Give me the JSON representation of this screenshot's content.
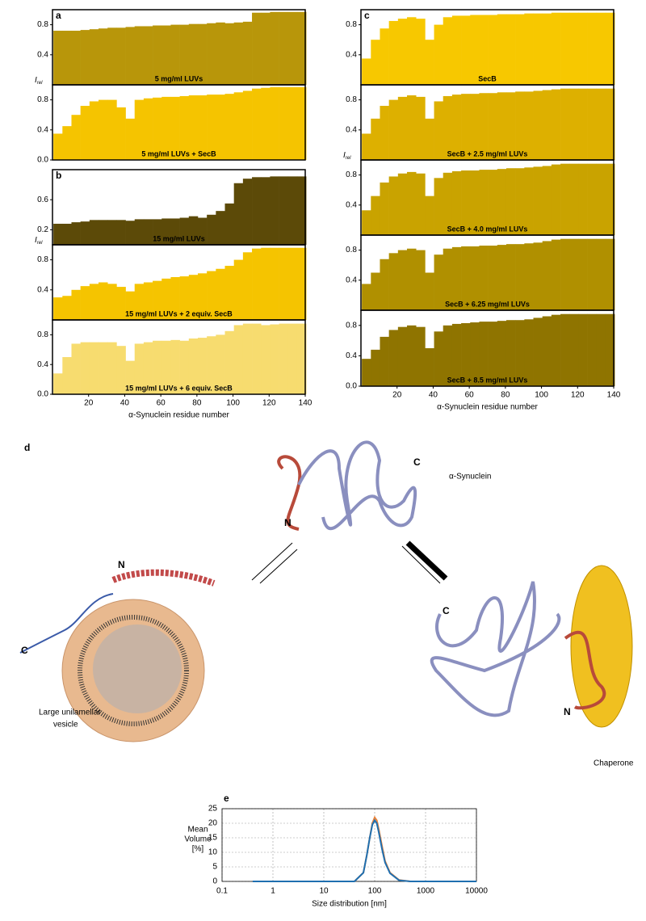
{
  "chart_data": [
    {
      "type": "bar",
      "panel_label": "a",
      "label": "5 mg/ml LUVs",
      "color": "#b8960a",
      "y_label": "I",
      "y_label_subscript": "rel",
      "x": [
        3,
        8,
        13,
        18,
        23,
        28,
        33,
        38,
        43,
        48,
        53,
        58,
        63,
        68,
        73,
        78,
        83,
        88,
        93,
        98,
        103,
        108,
        113,
        118,
        123,
        128,
        133,
        138
      ],
      "values": [
        0.72,
        0.72,
        0.72,
        0.73,
        0.74,
        0.75,
        0.76,
        0.76,
        0.77,
        0.78,
        0.78,
        0.79,
        0.79,
        0.8,
        0.8,
        0.81,
        0.81,
        0.82,
        0.83,
        0.82,
        0.83,
        0.84,
        0.96,
        0.96,
        0.97,
        0.97,
        0.97,
        0.97
      ],
      "xlim": [
        0,
        140
      ],
      "ylim": [
        0,
        1
      ],
      "yticks": [
        0.4,
        0.8
      ]
    },
    {
      "type": "bar",
      "label": "5 mg/ml LUVs + SecB",
      "color": "#f5c400",
      "x": [
        3,
        8,
        13,
        18,
        23,
        28,
        33,
        38,
        43,
        48,
        53,
        58,
        63,
        68,
        73,
        78,
        83,
        88,
        93,
        98,
        103,
        108,
        113,
        118,
        123,
        128,
        133,
        138
      ],
      "values": [
        0.35,
        0.45,
        0.6,
        0.72,
        0.78,
        0.8,
        0.8,
        0.7,
        0.55,
        0.8,
        0.82,
        0.83,
        0.84,
        0.84,
        0.85,
        0.86,
        0.86,
        0.87,
        0.87,
        0.88,
        0.9,
        0.92,
        0.95,
        0.96,
        0.97,
        0.97,
        0.97,
        0.97
      ],
      "xlim": [
        0,
        140
      ],
      "ylim": [
        0,
        1
      ],
      "yticks": [
        {
          "value": 0,
          "label": "0.0"
        },
        0.4,
        0.8
      ]
    },
    {
      "type": "bar",
      "panel_label": "b",
      "label": "15 mg/ml LUVs",
      "color": "#5c4a08",
      "y_label": "I",
      "y_label_subscript": "rel",
      "x": [
        3,
        8,
        13,
        18,
        23,
        28,
        33,
        38,
        43,
        48,
        53,
        58,
        63,
        68,
        73,
        78,
        83,
        88,
        93,
        98,
        103,
        108,
        113,
        118,
        123,
        128,
        133,
        138
      ],
      "values": [
        0.28,
        0.28,
        0.3,
        0.31,
        0.33,
        0.33,
        0.33,
        0.33,
        0.32,
        0.34,
        0.34,
        0.34,
        0.35,
        0.35,
        0.36,
        0.38,
        0.36,
        0.4,
        0.45,
        0.55,
        0.82,
        0.88,
        0.9,
        0.9,
        0.91,
        0.91,
        0.91,
        0.91
      ],
      "xlim": [
        0,
        140
      ],
      "ylim": [
        0,
        1
      ],
      "yticks": [
        0.2,
        0.6
      ]
    },
    {
      "type": "bar",
      "label": "15 mg/ml LUVs + 2 equiv. SecB",
      "color": "#f5c400",
      "x": [
        3,
        8,
        13,
        18,
        23,
        28,
        33,
        38,
        43,
        48,
        53,
        58,
        63,
        68,
        73,
        78,
        83,
        88,
        93,
        98,
        103,
        108,
        113,
        118,
        123,
        128,
        133,
        138
      ],
      "values": [
        0.3,
        0.32,
        0.4,
        0.45,
        0.48,
        0.5,
        0.48,
        0.44,
        0.38,
        0.48,
        0.5,
        0.52,
        0.55,
        0.57,
        0.58,
        0.6,
        0.62,
        0.65,
        0.68,
        0.72,
        0.8,
        0.9,
        0.95,
        0.96,
        0.96,
        0.96,
        0.96,
        0.96
      ],
      "xlim": [
        0,
        140
      ],
      "ylim": [
        0,
        1
      ],
      "yticks": [
        0.4,
        0.8
      ]
    },
    {
      "type": "bar",
      "label": "15 mg/ml LUVs + 6 equiv. SecB",
      "color": "#f7dc6f",
      "x": [
        3,
        8,
        13,
        18,
        23,
        28,
        33,
        38,
        43,
        48,
        53,
        58,
        63,
        68,
        73,
        78,
        83,
        88,
        93,
        98,
        103,
        108,
        113,
        118,
        123,
        128,
        133,
        138
      ],
      "values": [
        0.28,
        0.5,
        0.68,
        0.7,
        0.7,
        0.7,
        0.7,
        0.65,
        0.45,
        0.68,
        0.7,
        0.72,
        0.72,
        0.73,
        0.72,
        0.75,
        0.76,
        0.78,
        0.8,
        0.85,
        0.93,
        0.95,
        0.95,
        0.93,
        0.94,
        0.95,
        0.95,
        0.95
      ],
      "xlim": [
        0,
        140
      ],
      "ylim": [
        0,
        1
      ],
      "yticks": [
        {
          "value": 0,
          "label": "0.0"
        },
        0.4,
        0.8
      ],
      "xticks": [
        20,
        40,
        60,
        80,
        100,
        120,
        140
      ],
      "x_label": "α-Synuclein residue number"
    },
    {
      "type": "bar",
      "panel_label": "c",
      "label": "SecB",
      "color": "#f7c800",
      "x": [
        3,
        8,
        13,
        18,
        23,
        28,
        33,
        38,
        43,
        48,
        53,
        58,
        63,
        68,
        73,
        78,
        83,
        88,
        93,
        98,
        103,
        108,
        113,
        118,
        123,
        128,
        133,
        138
      ],
      "values": [
        0.35,
        0.6,
        0.75,
        0.85,
        0.88,
        0.9,
        0.88,
        0.6,
        0.8,
        0.9,
        0.92,
        0.92,
        0.93,
        0.93,
        0.93,
        0.94,
        0.94,
        0.94,
        0.95,
        0.95,
        0.95,
        0.96,
        0.96,
        0.96,
        0.96,
        0.96,
        0.96,
        0.96
      ],
      "xlim": [
        0,
        140
      ],
      "ylim": [
        0,
        1
      ],
      "yticks": [
        0.4,
        0.8
      ]
    },
    {
      "type": "bar",
      "label": "SecB + 2.5 mg/ml LUVs",
      "color": "#ddb000",
      "y_label": "I",
      "y_label_subscript": "rel",
      "x": [
        3,
        8,
        13,
        18,
        23,
        28,
        33,
        38,
        43,
        48,
        53,
        58,
        63,
        68,
        73,
        78,
        83,
        88,
        93,
        98,
        103,
        108,
        113,
        118,
        123,
        128,
        133,
        138
      ],
      "values": [
        0.35,
        0.55,
        0.72,
        0.8,
        0.84,
        0.86,
        0.84,
        0.55,
        0.78,
        0.85,
        0.87,
        0.88,
        0.88,
        0.89,
        0.89,
        0.9,
        0.9,
        0.91,
        0.91,
        0.92,
        0.93,
        0.94,
        0.95,
        0.95,
        0.95,
        0.95,
        0.95,
        0.95
      ],
      "xlim": [
        0,
        140
      ],
      "ylim": [
        0,
        1
      ],
      "yticks": [
        0.4,
        0.8
      ]
    },
    {
      "type": "bar",
      "label": "SecB + 4.0 mg/ml LUVs",
      "color": "#c9a300",
      "x": [
        3,
        8,
        13,
        18,
        23,
        28,
        33,
        38,
        43,
        48,
        53,
        58,
        63,
        68,
        73,
        78,
        83,
        88,
        93,
        98,
        103,
        108,
        113,
        118,
        123,
        128,
        133,
        138
      ],
      "values": [
        0.33,
        0.52,
        0.7,
        0.78,
        0.82,
        0.84,
        0.82,
        0.52,
        0.76,
        0.83,
        0.85,
        0.86,
        0.86,
        0.87,
        0.87,
        0.88,
        0.89,
        0.89,
        0.9,
        0.91,
        0.92,
        0.94,
        0.95,
        0.95,
        0.95,
        0.95,
        0.95,
        0.95
      ],
      "xlim": [
        0,
        140
      ],
      "ylim": [
        0,
        1
      ],
      "yticks": [
        0.4,
        0.8
      ]
    },
    {
      "type": "bar",
      "label": "SecB + 6.25 mg/ml LUVs",
      "color": "#b09000",
      "x": [
        3,
        8,
        13,
        18,
        23,
        28,
        33,
        38,
        43,
        48,
        53,
        58,
        63,
        68,
        73,
        78,
        83,
        88,
        93,
        98,
        103,
        108,
        113,
        118,
        123,
        128,
        133,
        138
      ],
      "values": [
        0.35,
        0.5,
        0.68,
        0.76,
        0.8,
        0.82,
        0.8,
        0.5,
        0.74,
        0.82,
        0.84,
        0.85,
        0.85,
        0.86,
        0.86,
        0.87,
        0.88,
        0.88,
        0.89,
        0.9,
        0.92,
        0.94,
        0.95,
        0.95,
        0.95,
        0.95,
        0.95,
        0.95
      ],
      "xlim": [
        0,
        140
      ],
      "ylim": [
        0,
        1
      ],
      "yticks": [
        0.4,
        0.8
      ]
    },
    {
      "type": "bar",
      "label": "SecB + 8.5 mg/ml LUVs",
      "color": "#8f7400",
      "x": [
        3,
        8,
        13,
        18,
        23,
        28,
        33,
        38,
        43,
        48,
        53,
        58,
        63,
        68,
        73,
        78,
        83,
        88,
        93,
        98,
        103,
        108,
        113,
        118,
        123,
        128,
        133,
        138
      ],
      "values": [
        0.36,
        0.48,
        0.65,
        0.74,
        0.78,
        0.8,
        0.78,
        0.5,
        0.72,
        0.8,
        0.82,
        0.83,
        0.84,
        0.85,
        0.85,
        0.86,
        0.87,
        0.87,
        0.88,
        0.9,
        0.92,
        0.94,
        0.95,
        0.95,
        0.95,
        0.95,
        0.95,
        0.95
      ],
      "xlim": [
        0,
        140
      ],
      "ylim": [
        0,
        1
      ],
      "yticks": [
        {
          "value": 0,
          "label": "0.0"
        },
        0.4,
        0.8
      ],
      "xticks": [
        20,
        40,
        60,
        80,
        100,
        120,
        140
      ],
      "x_label": "α-Synuclein residue number"
    },
    {
      "type": "line",
      "panel_label": "e",
      "x_log": true,
      "grid": true,
      "x": [
        0.4,
        20,
        40,
        60,
        70,
        80,
        90,
        100,
        110,
        120,
        140,
        160,
        200,
        300,
        500,
        10000
      ],
      "series": [
        {
          "color": "#e8823a",
          "values": [
            0,
            0,
            0,
            3,
            9,
            15,
            20,
            22,
            21,
            18,
            12,
            7,
            3,
            0.5,
            0,
            0
          ]
        },
        {
          "color": "#1f6fb0",
          "values": [
            0,
            0,
            0,
            3,
            9,
            15,
            19.5,
            21,
            20,
            17,
            11,
            6.5,
            2.8,
            0.4,
            0,
            0
          ]
        }
      ],
      "xlim": [
        0.1,
        10000
      ],
      "xticks": [
        0.1,
        1,
        10,
        100,
        1000,
        10000
      ],
      "ylim": [
        0,
        25
      ],
      "yticks": [
        0,
        5,
        10,
        15,
        20,
        25
      ],
      "y_label": [
        "Mean",
        "Volume",
        "[%]"
      ],
      "x_label": "Size distribution [nm]"
    }
  ],
  "diagram": {
    "panel_label": "d",
    "protein": "α-Synuclein",
    "protein_n": "N",
    "protein_c": "C",
    "vesicle_n": "N",
    "vesicle_c": "C",
    "vesicle": [
      "Large unilamellar",
      "vesicle"
    ],
    "chaperone_c": "C",
    "chaperone_n": "N",
    "chaperone": "Chaperone"
  }
}
